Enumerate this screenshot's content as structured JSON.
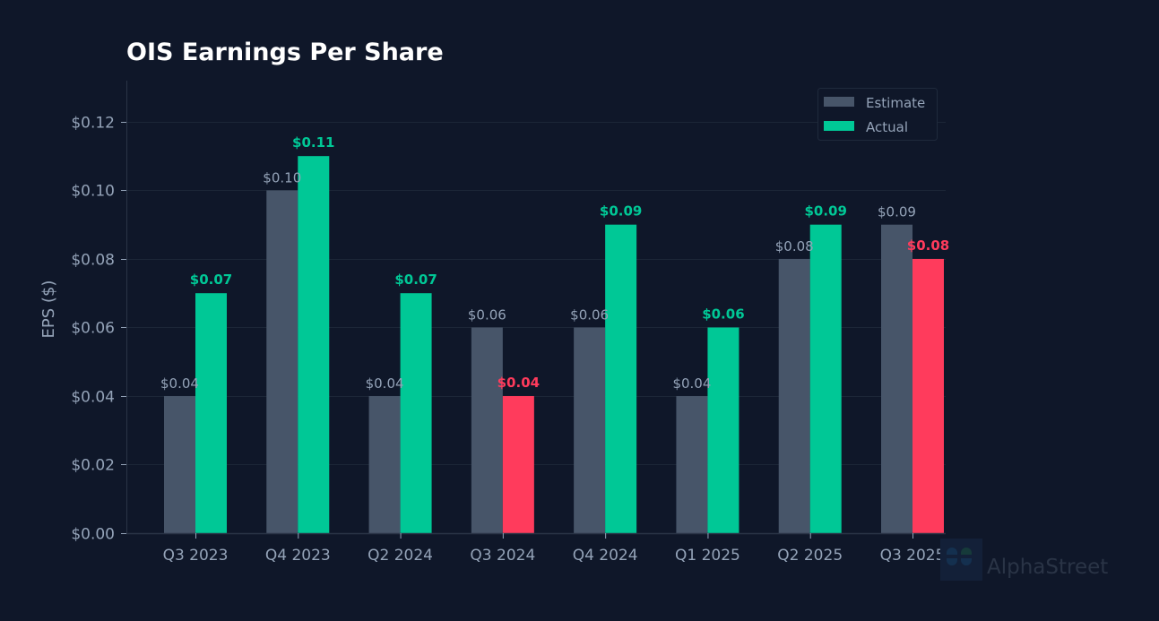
{
  "chart_data": {
    "type": "bar",
    "title": "OIS  Earnings Per Share",
    "xlabel": "",
    "ylabel": "EPS ($)",
    "ylim": [
      0,
      0.132
    ],
    "yticks": [
      0,
      0.02,
      0.04,
      0.06,
      0.08,
      0.1,
      0.12
    ],
    "ytick_labels": [
      "$0.00",
      "$0.02",
      "$0.04",
      "$0.06",
      "$0.08",
      "$0.10",
      "$0.12"
    ],
    "grid": "horizontal",
    "legend_position": "top-right",
    "categories": [
      "Q3 2023",
      "Q4 2023",
      "Q2 2024",
      "Q3 2024",
      "Q4 2024",
      "Q1 2025",
      "Q2 2025",
      "Q3 2025"
    ],
    "series": [
      {
        "name": "Estimate",
        "color": "#475569",
        "values": [
          0.04,
          0.1,
          0.04,
          0.06,
          0.06,
          0.04,
          0.08,
          0.09
        ],
        "labels": [
          "$0.04",
          "$0.10",
          "$0.04",
          "$0.06",
          "$0.06",
          "$0.04",
          "$0.08",
          "$0.09"
        ]
      },
      {
        "name": "Actual",
        "color": "#00c896",
        "values": [
          0.07,
          0.11,
          0.07,
          0.04,
          0.09,
          0.06,
          0.09,
          0.08
        ],
        "labels": [
          "$0.07",
          "$0.11",
          "$0.07",
          "$0.04",
          "$0.09",
          "$0.06",
          "$0.09",
          "$0.08"
        ],
        "beat_color": "#00c896",
        "miss_color": "#ff3b5c"
      }
    ]
  },
  "watermark": {
    "text": "AlphaStreet",
    "icon": "alphastreet-logo-icon"
  },
  "colors": {
    "background": "#0f1729",
    "grid": "#1c2637",
    "axis": "#2a3446",
    "text_muted": "#94a3b8"
  }
}
